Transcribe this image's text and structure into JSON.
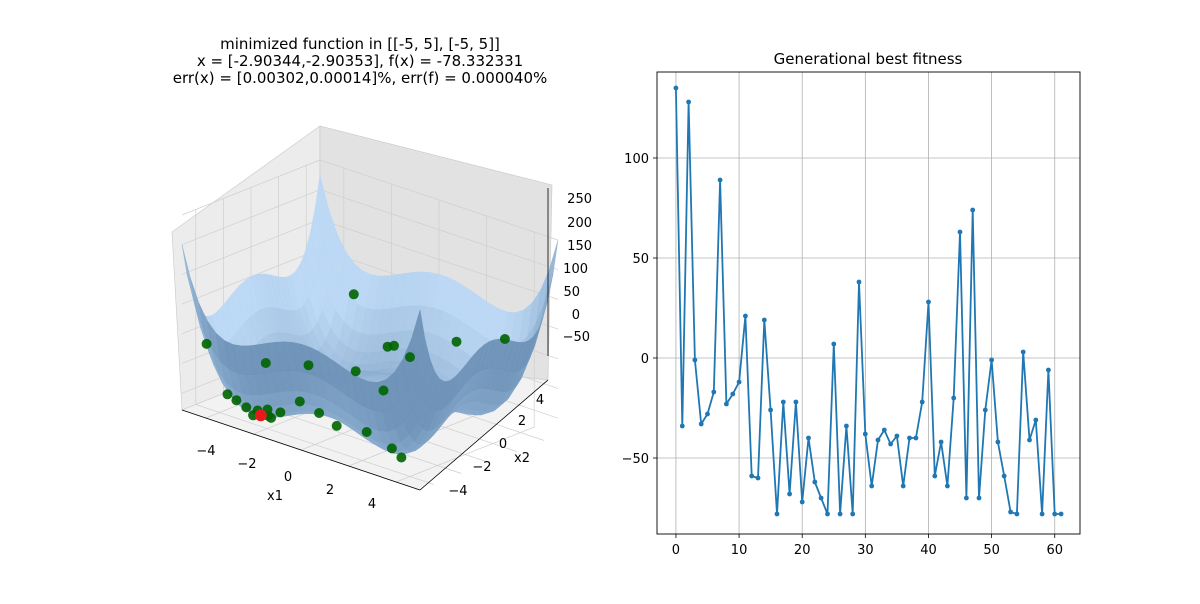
{
  "chart_data": [
    {
      "type": "surface3d",
      "title_lines": [
        "minimized function in [[-5, 5], [-5, 5]]",
        "x = [-2.90344,-2.90353], f(x) = -78.332331",
        "err(x) = [0.00302,0.00014]%, err(f) = 0.000040%"
      ],
      "xlabel": "x1",
      "ylabel": "x2",
      "zlabel": "",
      "xlim": [
        -5,
        5
      ],
      "ylim": [
        -5,
        5
      ],
      "zlim": [
        -78.33,
        250
      ],
      "x_ticks": [
        "−4",
        "−2",
        "0",
        "2",
        "4"
      ],
      "y_ticks": [
        "−4",
        "−2",
        "0",
        "2",
        "4"
      ],
      "z_ticks": [
        "−50",
        "0",
        "50",
        "100",
        "150",
        "200",
        "250"
      ],
      "grid": true,
      "surface_color": "#5b8fc2",
      "population_color": "#006400",
      "best_color": "#e41a1c",
      "best_point": {
        "x1": -2.90344,
        "x2": -2.90353,
        "f": -78.332331
      },
      "population": [
        {
          "x1": -4.2,
          "x2": -4.6,
          "f": 40
        },
        {
          "x1": -3.9,
          "x2": -3.6,
          "f": -50
        },
        {
          "x1": -3.7,
          "x2": -3.3,
          "f": -60
        },
        {
          "x1": -3.4,
          "x2": -3.1,
          "f": -70
        },
        {
          "x1": -3.1,
          "x2": -2.8,
          "f": -74
        },
        {
          "x1": -2.8,
          "x2": -2.6,
          "f": -70
        },
        {
          "x1": -2.6,
          "x2": -2.9,
          "f": -75
        },
        {
          "x1": -2.3,
          "x2": -3.2,
          "f": -72
        },
        {
          "x1": -3.0,
          "x2": -3.3,
          "f": -76
        },
        {
          "x1": -2.2,
          "x2": -2.7,
          "f": -66
        },
        {
          "x1": -1.5,
          "x2": -2.5,
          "f": -40
        },
        {
          "x1": -0.4,
          "x2": -3.0,
          "f": -40
        },
        {
          "x1": 0.4,
          "x2": -3.1,
          "f": -50
        },
        {
          "x1": 1.6,
          "x2": -3.0,
          "f": -45
        },
        {
          "x1": 2.6,
          "x2": -2.9,
          "f": -60
        },
        {
          "x1": 3.0,
          "x2": -2.9,
          "f": -70
        },
        {
          "x1": -2.7,
          "x2": 0.2,
          "f": -20
        },
        {
          "x1": -0.6,
          "x2": 0.0,
          "f": 0
        },
        {
          "x1": 0.8,
          "x2": -0.4,
          "f": -10
        },
        {
          "x1": -0.5,
          "x2": 2.6,
          "f": 20
        },
        {
          "x1": -1.0,
          "x2": 3.0,
          "f": 8
        },
        {
          "x1": 0.0,
          "x2": 2.9,
          "f": 5
        },
        {
          "x1": -3.0,
          "x2": 4.0,
          "f": 60
        },
        {
          "x1": 1.2,
          "x2": 4.2,
          "f": 35
        },
        {
          "x1": 3.0,
          "x2": 4.6,
          "f": 60
        },
        {
          "x1": -3.8,
          "x2": -1.0,
          "f": -20
        }
      ]
    },
    {
      "type": "line",
      "title": "Generational best fitness",
      "xlabel": "",
      "ylabel": "",
      "xlim": [
        -3,
        64
      ],
      "ylim": [
        -88,
        143
      ],
      "x_ticks": [
        0,
        10,
        20,
        30,
        40,
        50,
        60
      ],
      "y_ticks": [
        -50,
        0,
        50,
        100
      ],
      "grid": true,
      "color": "#1f77b4",
      "series": [
        {
          "values": [
            135,
            -34,
            128,
            -1,
            -33,
            -28,
            -17,
            89,
            -23,
            -18,
            -12,
            21,
            -59,
            -60,
            19,
            -26,
            -78,
            -22,
            -68,
            -22,
            -72,
            -40,
            -62,
            -70,
            -78,
            7,
            -78,
            -34,
            -78,
            38,
            -38,
            -64,
            -41,
            -36,
            -43,
            -39,
            -64,
            -40,
            -40,
            -22,
            28,
            -59,
            -42,
            -64,
            -20,
            63,
            -70,
            74,
            -70,
            -26,
            -1,
            -42,
            -59,
            -77,
            -78,
            3,
            -41,
            -31,
            -78,
            -6,
            -78,
            -78
          ]
        }
      ]
    }
  ]
}
